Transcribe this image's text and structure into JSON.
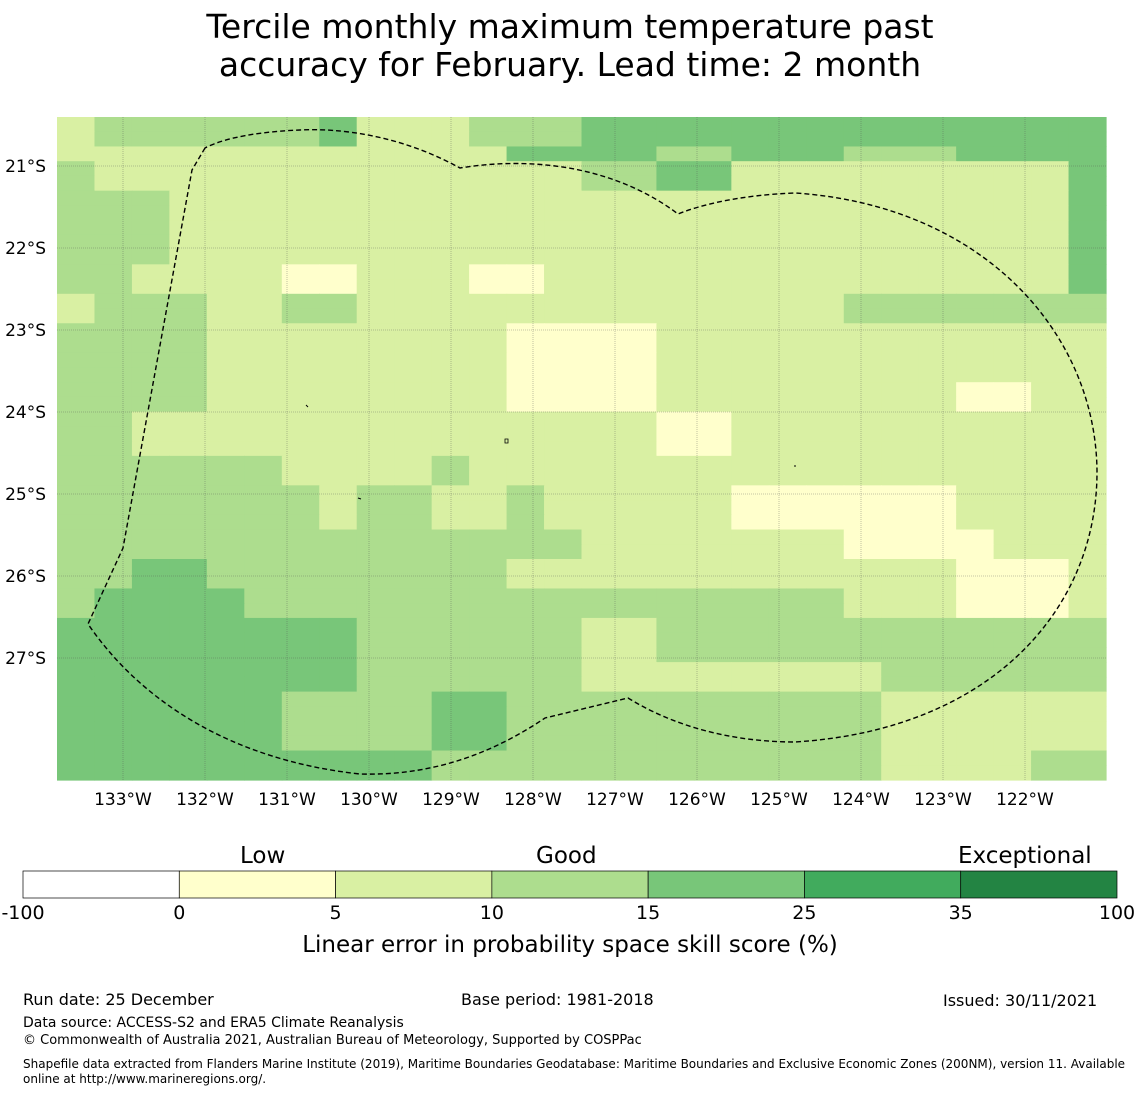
{
  "title_line1": "Tercile monthly maximum temperature past",
  "title_line2": "accuracy for February. Lead time: 2 month",
  "map": {
    "lon_labels": [
      "133°W",
      "132°W",
      "131°W",
      "130°W",
      "129°W",
      "128°W",
      "127°W",
      "126°W",
      "125°W",
      "124°W",
      "123°W",
      "122°W"
    ],
    "lat_labels": [
      "21°S",
      "22°S",
      "23°S",
      "24°S",
      "25°S",
      "26°S",
      "27°S"
    ],
    "cell_colors": {
      "0": "#ffffff",
      "1": "#ffffcc",
      "2": "#d9f0a3",
      "3": "#addd8e",
      "4": "#78c679",
      "5": "#41ab5d",
      "6": "#238443"
    },
    "grid": [
      "2333333422233344444444444444",
      "2333333422233344444444444444",
      "2222222222224444334443334444",
      "3222222222222233442222222224",
      "3222222222222233442222222224",
      "3332222222222222222222222224",
      "3332222222222222222222222224",
      "3332222222222222222222222224",
      "3332222222222222222222222224",
      "3332222222222222222222222224",
      "3322221122211222222222222224",
      "3322221122211222222222222224",
      "2333223322222222222223333333",
      "2333223322222222222223333333",
      "3333222222221111222222222222",
      "3333222222221111222222222222",
      "3333222222221111222222222222",
      "3333222222221111222222222222",
      "3333222222221111222222221122",
      "3333222222221111222222221122",
      "3322222222222222112222222222",
      "3322222222222222112222222222",
      "3322222222222222112222222222",
      "3333332222322222222222222222",
      "3333332222322222222222222222",
      "3333333233223222221111112222",
      "3333333233223222221111112222",
      "3333333233223222221111112222",
      "3333333333333322222221111222",
      "3333333333333322222221111222",
      "3344333333332222222222221112",
      "3344333333332222222222221112",
      "3444433333333333333332221112",
      "3444433333333333333332221112",
      "4444444433333322333333333333",
      "4444444433333322333333333333",
      "4444444433333322333333333333",
      "4444444433333322222222333333",
      "4444444433333322222222333333",
      "4444443333443333333333222222",
      "4444443333443333333333222222",
      "4444443333443333333333222222",
      "4444443333443333333333222222",
      "4444444444333333333333222233",
      "4444444444333333333333222233"
    ]
  },
  "colorbar": {
    "category_labels": [
      "Low",
      "Good",
      "Exceptional"
    ],
    "ticks": [
      "-100",
      "0",
      "5",
      "10",
      "15",
      "25",
      "35",
      "100"
    ],
    "colors": [
      "#ffffff",
      "#ffffcc",
      "#d9f0a3",
      "#addd8e",
      "#78c679",
      "#41ab5d",
      "#238443"
    ],
    "label": "Linear error in probability space skill score (%)"
  },
  "footer": {
    "run_date": "Run date: 25 December",
    "base_period": "Base period: 1981-2018",
    "issued": "Issued: 30/11/2021",
    "data_source": "Data source: ACCESS-S2 and ERA5 Climate Reanalysis",
    "copyright": "© Commonwealth of Australia 2021, Australian Bureau of Meteorology, Supported by COSPPac",
    "shapefile_note": "Shapefile data extracted from Flanders Marine Institute (2019), Maritime Boundaries Geodatabase: Maritime Boundaries and Exclusive Economic Zones (200NM), version 11. Available online at http://www.marineregions.org/."
  }
}
